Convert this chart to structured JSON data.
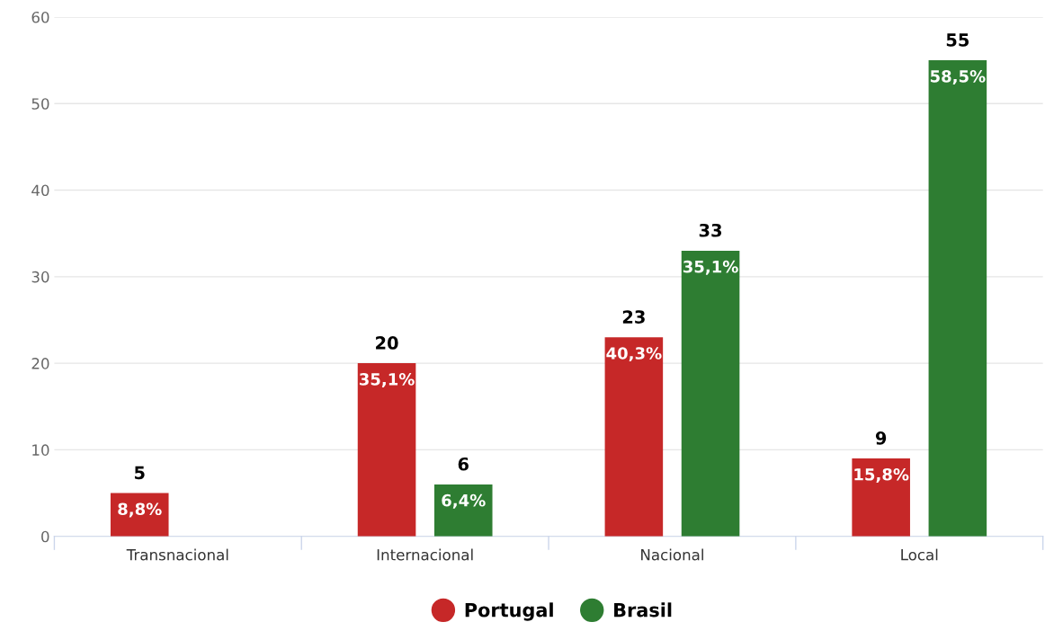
{
  "chart_data": {
    "type": "bar",
    "categories": [
      "Transnacional",
      "Internacional",
      "Nacional",
      "Local"
    ],
    "series": [
      {
        "name": "Portugal",
        "color": "#c62828",
        "values": [
          5,
          20,
          23,
          9
        ]
      },
      {
        "name": "Brasil",
        "color": "#2e7d32",
        "values": [
          null,
          6,
          33,
          55
        ]
      }
    ],
    "annotations": [
      "8,8%",
      "35,1%",
      "6,4%",
      "40,3%",
      "35,1%",
      "15,8%",
      "58,5%"
    ],
    "data_labels": true,
    "ylim": [
      0,
      60
    ],
    "yticks": [
      0,
      10,
      20,
      30,
      40,
      50,
      60
    ],
    "grid": "y",
    "legend": "bottom",
    "marker": "circle"
  }
}
